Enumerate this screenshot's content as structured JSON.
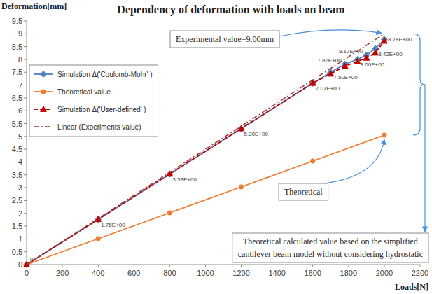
{
  "chart_data": {
    "type": "line",
    "title": "Dependency of deformation with loads on beam",
    "x_label": "Loads[N]",
    "y_label": "Deformation[mm]",
    "xlim": [
      0,
      2200
    ],
    "xticks": [
      0,
      200,
      400,
      600,
      800,
      1000,
      1200,
      1400,
      1600,
      1800,
      2000,
      2200
    ],
    "ylim": [
      0,
      9.5
    ],
    "yticks": [
      0,
      0.5,
      1,
      1.5,
      2,
      2.5,
      3,
      3.5,
      4,
      4.5,
      5,
      5.5,
      6,
      6.5,
      7,
      7.5,
      8,
      8.5,
      9,
      9.5
    ],
    "grid": false,
    "legend": "upper left",
    "series": [
      {
        "name": "Simulation Δ('Coulomb-Mohr' )",
        "color": "#4f81bd",
        "marker": "diamond",
        "line_style": "solid",
        "x": [
          0,
          400,
          800,
          1200,
          1600,
          1700,
          1780,
          1850,
          1900,
          1950,
          2000
        ],
        "values": [
          0,
          1.76,
          3.53,
          5.3,
          7.07,
          7.5,
          7.82,
          8.0,
          8.17,
          8.42,
          8.78
        ],
        "data_labels": true,
        "value_labels": [
          "0",
          "1.76E+00",
          "3.53E+00",
          "5.30E+00",
          "7.07E+00",
          "7.50E+00",
          "7.82E+00",
          "8.00E+00",
          "8.17E+00",
          "8.42E+00",
          "8.78E+00"
        ]
      },
      {
        "name": "Theoretical value",
        "color": "#ed7d31",
        "marker": "circle",
        "line_style": "solid",
        "x": [
          0,
          400,
          800,
          1200,
          1600,
          2000
        ],
        "values": [
          0,
          1.01,
          2.02,
          3.03,
          4.04,
          5.05
        ]
      },
      {
        "name": "Simulation Δ('User-defined' )",
        "color": "#c00000",
        "marker": "triangle",
        "line_style": "dashed",
        "x": [
          0,
          400,
          800,
          1200,
          1600,
          1700,
          1780,
          1850,
          1900,
          1950,
          2000
        ],
        "values": [
          0,
          1.77,
          3.54,
          5.31,
          7.08,
          7.44,
          7.74,
          7.92,
          8.06,
          8.26,
          8.72
        ]
      },
      {
        "name": "Linear (Experiments value)",
        "color": "#a0362f",
        "marker": "none",
        "line_style": "dashdot",
        "x": [
          0,
          2000
        ],
        "values": [
          0,
          9.0
        ]
      }
    ],
    "annotations": [
      {
        "text": "Experimental value=9.00mm"
      },
      {
        "text": "Theoretical"
      },
      {
        "text": [
          "Theoretical calculated value based on the simplified",
          "cantilever beam model without considering hydrostatic"
        ]
      }
    ]
  }
}
